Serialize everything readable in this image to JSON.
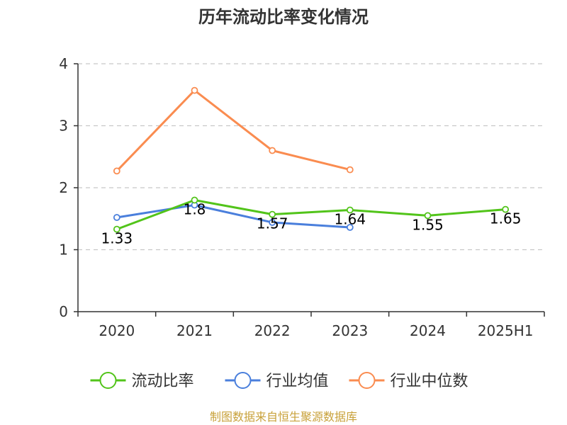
{
  "chart_data": {
    "type": "line",
    "title": "历年流动比率变化情况",
    "categories": [
      "2020",
      "2021",
      "2022",
      "2023",
      "2024",
      "2025H1"
    ],
    "ylim": [
      0,
      4
    ],
    "yticks": [
      0,
      1,
      2,
      3,
      4
    ],
    "grid": true,
    "legend_position": "bottom",
    "series": [
      {
        "name": "流动比率",
        "color": "#52c41a",
        "values": [
          1.33,
          1.8,
          1.57,
          1.64,
          1.55,
          1.65
        ],
        "labels": [
          "1.33",
          "1.8",
          "1.57",
          "1.64",
          "1.55",
          "1.65"
        ]
      },
      {
        "name": "行业均值",
        "color": "#4a7fdc",
        "values": [
          1.52,
          1.72,
          1.44,
          1.36,
          null,
          null
        ]
      },
      {
        "name": "行业中位数",
        "color": "#fa8c50",
        "values": [
          2.27,
          3.57,
          2.6,
          2.29,
          null,
          null
        ]
      }
    ]
  },
  "source": "制图数据来自恒生聚源数据库"
}
